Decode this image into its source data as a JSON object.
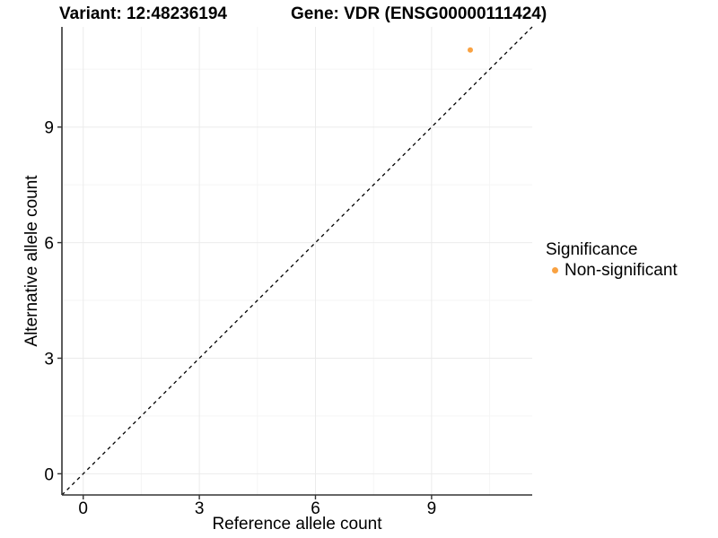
{
  "titles": {
    "variant": "Variant: 12:48236194",
    "gene": "Gene: VDR (ENSG00000111424)"
  },
  "axes": {
    "x_label": "Reference allele count",
    "y_label": "Alternative allele count"
  },
  "legend": {
    "title": "Significance",
    "items": [
      {
        "label": "Non-significant",
        "color": "#F9A242"
      }
    ]
  },
  "colors": {
    "background": "#FFFFFF",
    "grid_major": "#EBEBEB",
    "grid_minor": "#F5F5F5",
    "axis_line": "#333333",
    "tick_mark": "#333333",
    "text": "#000000",
    "point": "#F9A242",
    "identity_line": "#000000"
  },
  "chart_data": {
    "type": "scatter",
    "title": "Variant: 12:48236194   Gene: VDR (ENSG00000111424)",
    "xlabel": "Reference allele count",
    "ylabel": "Alternative allele count",
    "xlim": [
      -0.55,
      11.6
    ],
    "ylim": [
      -0.55,
      11.6
    ],
    "x_ticks": [
      0,
      3,
      6,
      9
    ],
    "y_ticks": [
      0,
      3,
      6,
      9
    ],
    "x_minor_ticks": [
      1.5,
      4.5,
      7.5,
      10.5
    ],
    "y_minor_ticks": [
      1.5,
      4.5,
      7.5,
      10.5
    ],
    "grid": true,
    "legend_position": "right",
    "series": [
      {
        "name": "Non-significant",
        "color": "#F9A242",
        "points": [
          {
            "x": 10,
            "y": 11
          }
        ]
      }
    ],
    "reference_line": {
      "kind": "identity",
      "style": "dashed",
      "color": "#000000"
    }
  }
}
